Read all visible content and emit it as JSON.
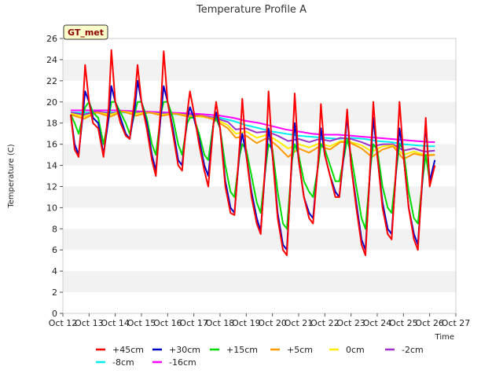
{
  "chart_data": {
    "type": "line",
    "title": "Temperature Profile A",
    "xlabel": "Time",
    "ylabel": "Temperature (C)",
    "badge": "GT_met",
    "ylim": [
      0,
      26
    ],
    "yticks": [
      0,
      2,
      4,
      6,
      8,
      10,
      12,
      14,
      16,
      18,
      20,
      22,
      24,
      26
    ],
    "xlim": [
      12,
      27
    ],
    "xticks": [
      {
        "v": 12,
        "label": "Oct 12"
      },
      {
        "v": 13,
        "label": "Oct 13"
      },
      {
        "v": 14,
        "label": "Oct 14"
      },
      {
        "v": 15,
        "label": "Oct 15"
      },
      {
        "v": 16,
        "label": "Oct 16"
      },
      {
        "v": 17,
        "label": "Oct 17"
      },
      {
        "v": 18,
        "label": "Oct 18"
      },
      {
        "v": 19,
        "label": "Oct 19"
      },
      {
        "v": 20,
        "label": "Oct 20"
      },
      {
        "v": 21,
        "label": "Oct 21"
      },
      {
        "v": 22,
        "label": "Oct 22"
      },
      {
        "v": 23,
        "label": "Oct 23"
      },
      {
        "v": 24,
        "label": "Oct 24"
      },
      {
        "v": 25,
        "label": "Oct 25"
      },
      {
        "v": 26,
        "label": "Oct 26"
      },
      {
        "v": 27,
        "label": "Oct 27"
      }
    ],
    "grid": "horizontal bands",
    "legend_position": "bottom",
    "series": [
      {
        "name": "+45cm",
        "color": "#ff0000",
        "x": [
          12.3,
          12.45,
          12.6,
          12.75,
          12.85,
          13.0,
          13.15,
          13.35,
          13.55,
          13.75,
          13.85,
          14.0,
          14.2,
          14.4,
          14.55,
          14.75,
          14.85,
          15.0,
          15.2,
          15.4,
          15.55,
          15.75,
          15.85,
          16.0,
          16.2,
          16.4,
          16.55,
          16.75,
          16.85,
          17.0,
          17.2,
          17.4,
          17.55,
          17.75,
          17.85,
          18.0,
          18.2,
          18.4,
          18.55,
          18.75,
          18.85,
          19.0,
          19.2,
          19.4,
          19.55,
          19.75,
          19.85,
          20.0,
          20.2,
          20.4,
          20.55,
          20.75,
          20.85,
          21.0,
          21.2,
          21.4,
          21.55,
          21.75,
          21.85,
          22.0,
          22.2,
          22.4,
          22.55,
          22.75,
          22.85,
          23.0,
          23.2,
          23.4,
          23.55,
          23.75,
          23.85,
          24.0,
          24.2,
          24.4,
          24.55,
          24.75,
          24.85,
          25.0,
          25.2,
          25.4,
          25.55,
          25.75,
          25.85,
          26.0,
          26.2
        ],
        "y": [
          18.8,
          15.5,
          14.8,
          19.0,
          23.5,
          20.0,
          18.0,
          17.5,
          14.8,
          19.5,
          24.9,
          20.0,
          18.0,
          16.8,
          16.5,
          20.5,
          23.5,
          20.0,
          17.5,
          14.5,
          13.0,
          20.0,
          24.8,
          20.0,
          17.0,
          14.0,
          13.5,
          19.0,
          21.0,
          19.0,
          16.0,
          13.5,
          12.0,
          18.0,
          20.0,
          17.5,
          12.0,
          9.5,
          9.3,
          16.0,
          20.3,
          15.0,
          11.0,
          8.5,
          7.5,
          15.0,
          21.0,
          15.0,
          9.0,
          6.0,
          5.5,
          15.5,
          20.8,
          14.5,
          11.0,
          9.0,
          8.5,
          14.5,
          19.8,
          15.0,
          13.0,
          11.0,
          11.0,
          16.0,
          19.3,
          14.0,
          10.0,
          6.5,
          5.5,
          15.0,
          20.0,
          15.0,
          10.0,
          7.5,
          7.0,
          15.0,
          20.0,
          15.0,
          10.0,
          7.0,
          6.0,
          14.0,
          18.5,
          12.0,
          14.0
        ]
      },
      {
        "name": "+30cm",
        "color": "#0000cc",
        "x": [
          12.3,
          12.45,
          12.6,
          12.75,
          12.85,
          13.0,
          13.15,
          13.35,
          13.55,
          13.75,
          13.85,
          14.0,
          14.2,
          14.4,
          14.55,
          14.75,
          14.85,
          15.0,
          15.2,
          15.4,
          15.55,
          15.75,
          15.85,
          16.0,
          16.2,
          16.4,
          16.55,
          16.75,
          16.85,
          17.0,
          17.2,
          17.4,
          17.55,
          17.75,
          17.85,
          18.0,
          18.2,
          18.4,
          18.55,
          18.75,
          18.85,
          19.0,
          19.2,
          19.4,
          19.55,
          19.75,
          19.85,
          20.0,
          20.2,
          20.4,
          20.55,
          20.75,
          20.85,
          21.0,
          21.2,
          21.4,
          21.55,
          21.75,
          21.85,
          22.0,
          22.2,
          22.4,
          22.55,
          22.75,
          22.85,
          23.0,
          23.2,
          23.4,
          23.55,
          23.75,
          23.85,
          24.0,
          24.2,
          24.4,
          24.55,
          24.75,
          24.85,
          25.0,
          25.2,
          25.4,
          25.55,
          25.75,
          25.85,
          26.0,
          26.2
        ],
        "y": [
          18.8,
          16.0,
          15.0,
          18.5,
          21.0,
          20.0,
          18.5,
          18.0,
          15.0,
          18.5,
          21.5,
          20.0,
          18.5,
          17.0,
          16.5,
          19.5,
          22.0,
          20.0,
          18.0,
          15.0,
          13.5,
          19.0,
          21.5,
          20.0,
          17.5,
          14.5,
          14.0,
          18.5,
          19.5,
          18.5,
          16.5,
          14.0,
          13.0,
          18.0,
          19.0,
          17.5,
          12.5,
          10.0,
          9.5,
          15.5,
          17.0,
          15.0,
          11.5,
          9.0,
          7.8,
          14.5,
          17.5,
          15.0,
          9.5,
          6.5,
          6.0,
          15.0,
          18.0,
          14.5,
          11.0,
          9.5,
          9.0,
          14.5,
          17.5,
          15.0,
          13.0,
          11.5,
          11.0,
          15.5,
          18.8,
          14.0,
          10.5,
          7.0,
          6.0,
          14.5,
          18.5,
          15.0,
          10.5,
          8.0,
          7.5,
          14.5,
          17.5,
          15.0,
          10.0,
          7.5,
          6.5,
          13.5,
          18.0,
          12.5,
          14.5
        ]
      },
      {
        "name": "+15cm",
        "color": "#00dd00",
        "x": [
          12.3,
          12.45,
          12.6,
          12.75,
          12.85,
          13.0,
          13.15,
          13.35,
          13.55,
          13.75,
          13.85,
          14.0,
          14.2,
          14.4,
          14.55,
          14.75,
          14.85,
          15.0,
          15.2,
          15.4,
          15.55,
          15.75,
          15.85,
          16.0,
          16.2,
          16.4,
          16.55,
          16.75,
          16.85,
          17.0,
          17.2,
          17.4,
          17.55,
          17.75,
          17.85,
          18.0,
          18.2,
          18.4,
          18.55,
          18.75,
          18.85,
          19.0,
          19.2,
          19.4,
          19.55,
          19.75,
          19.85,
          20.0,
          20.2,
          20.4,
          20.55,
          20.75,
          20.85,
          21.0,
          21.2,
          21.4,
          21.55,
          21.75,
          21.85,
          22.0,
          22.2,
          22.4,
          22.55,
          22.75,
          22.85,
          23.0,
          23.2,
          23.4,
          23.55,
          23.75,
          23.85,
          24.0,
          24.2,
          24.4,
          24.55,
          24.75,
          24.85,
          25.0,
          25.2,
          25.4,
          25.55,
          25.75,
          25.85,
          26.0,
          26.2
        ],
        "y": [
          18.8,
          18.0,
          17.0,
          18.5,
          19.5,
          20.0,
          19.0,
          18.5,
          16.0,
          18.5,
          20.0,
          20.0,
          19.0,
          18.0,
          17.0,
          19.0,
          20.0,
          20.0,
          18.5,
          16.0,
          15.0,
          19.0,
          20.0,
          20.0,
          18.5,
          16.0,
          15.0,
          18.0,
          18.5,
          18.5,
          17.0,
          15.0,
          14.5,
          18.0,
          18.5,
          17.5,
          14.0,
          11.5,
          11.0,
          15.0,
          16.0,
          15.5,
          13.0,
          10.5,
          9.5,
          14.0,
          16.0,
          15.5,
          11.5,
          8.5,
          8.0,
          14.5,
          16.0,
          15.0,
          12.5,
          11.5,
          11.0,
          14.0,
          16.0,
          15.5,
          14.0,
          12.5,
          12.5,
          15.0,
          16.5,
          15.0,
          12.0,
          9.0,
          8.0,
          14.0,
          16.0,
          15.5,
          12.0,
          10.0,
          9.5,
          14.0,
          16.0,
          15.5,
          11.5,
          9.0,
          8.5,
          13.0,
          15.0,
          12.5,
          14.0
        ]
      },
      {
        "name": "+5cm",
        "color": "#ff9900",
        "x": [
          12.3,
          12.8,
          13.3,
          13.8,
          14.3,
          14.8,
          15.3,
          15.8,
          16.3,
          16.8,
          17.3,
          17.8,
          18.3,
          18.6,
          19.0,
          19.4,
          19.8,
          20.2,
          20.6,
          21.0,
          21.4,
          21.8,
          22.2,
          22.6,
          23.0,
          23.4,
          23.8,
          24.2,
          24.6,
          25.0,
          25.4,
          25.8,
          26.2
        ],
        "y": [
          18.8,
          18.4,
          19.0,
          18.6,
          19.1,
          18.7,
          19.0,
          18.7,
          18.9,
          18.6,
          18.7,
          18.3,
          17.5,
          16.6,
          16.8,
          16.1,
          16.6,
          15.8,
          14.8,
          15.6,
          15.2,
          15.8,
          15.5,
          16.2,
          16.1,
          15.6,
          14.8,
          15.5,
          15.8,
          14.6,
          15.1,
          14.9,
          15.0
        ]
      },
      {
        "name": "0cm",
        "color": "#ffee00",
        "x": [
          12.3,
          12.8,
          13.3,
          13.8,
          14.3,
          14.8,
          15.3,
          15.8,
          16.3,
          16.8,
          17.3,
          17.8,
          18.3,
          18.6,
          19.0,
          19.4,
          19.8,
          20.2,
          20.6,
          21.0,
          21.4,
          21.8,
          22.2,
          22.6,
          23.0,
          23.4,
          23.8,
          24.2,
          24.6,
          25.0,
          25.4,
          25.8,
          26.2
        ],
        "y": [
          18.9,
          18.6,
          19.0,
          18.8,
          19.1,
          18.9,
          19.0,
          18.8,
          18.9,
          18.7,
          18.6,
          18.4,
          17.8,
          17.0,
          17.2,
          16.6,
          16.9,
          16.3,
          15.6,
          16.0,
          15.7,
          16.1,
          15.8,
          16.3,
          16.2,
          15.9,
          15.3,
          15.8,
          15.9,
          15.0,
          15.3,
          15.0,
          15.0
        ]
      },
      {
        "name": "-2cm",
        "color": "#9933cc",
        "x": [
          12.3,
          12.8,
          13.3,
          13.8,
          14.3,
          14.8,
          15.3,
          15.8,
          16.3,
          16.8,
          17.3,
          17.8,
          18.3,
          18.6,
          19.0,
          19.4,
          19.8,
          20.2,
          20.6,
          21.0,
          21.4,
          21.8,
          22.2,
          22.6,
          23.0,
          23.4,
          23.8,
          24.2,
          24.6,
          25.0,
          25.4,
          25.8,
          26.2
        ],
        "y": [
          19.0,
          18.8,
          19.1,
          18.9,
          19.1,
          19.0,
          19.0,
          18.9,
          18.9,
          18.8,
          18.7,
          18.5,
          18.1,
          17.4,
          17.5,
          17.1,
          17.2,
          16.8,
          16.3,
          16.5,
          16.2,
          16.5,
          16.3,
          16.6,
          16.5,
          16.2,
          15.8,
          16.0,
          16.0,
          15.4,
          15.6,
          15.3,
          15.4
        ]
      },
      {
        "name": "-8cm",
        "color": "#00eeee",
        "x": [
          12.3,
          13.0,
          14.0,
          15.0,
          16.0,
          17.0,
          17.5,
          18.0,
          18.5,
          19.0,
          19.5,
          20.0,
          20.5,
          21.0,
          21.5,
          22.0,
          22.5,
          23.0,
          23.5,
          24.0,
          24.5,
          25.0,
          25.5,
          26.0,
          26.2
        ],
        "y": [
          19.0,
          19.0,
          19.0,
          19.0,
          18.9,
          18.7,
          18.6,
          18.5,
          18.2,
          17.8,
          17.5,
          17.2,
          17.0,
          16.8,
          16.7,
          16.6,
          16.5,
          16.6,
          16.5,
          16.3,
          16.2,
          16.0,
          15.9,
          15.8,
          15.8
        ]
      },
      {
        "name": "-16cm",
        "color": "#ff00ff",
        "x": [
          12.3,
          13.0,
          14.0,
          15.0,
          16.0,
          17.0,
          17.5,
          18.0,
          18.5,
          19.0,
          19.5,
          20.0,
          20.5,
          21.0,
          21.5,
          22.0,
          22.5,
          23.0,
          23.5,
          24.0,
          24.5,
          25.0,
          25.5,
          26.0,
          26.2
        ],
        "y": [
          19.2,
          19.2,
          19.2,
          19.1,
          19.0,
          18.9,
          18.8,
          18.7,
          18.5,
          18.2,
          18.0,
          17.7,
          17.4,
          17.2,
          17.0,
          16.9,
          16.9,
          16.8,
          16.7,
          16.6,
          16.5,
          16.4,
          16.3,
          16.2,
          16.2
        ]
      }
    ]
  }
}
